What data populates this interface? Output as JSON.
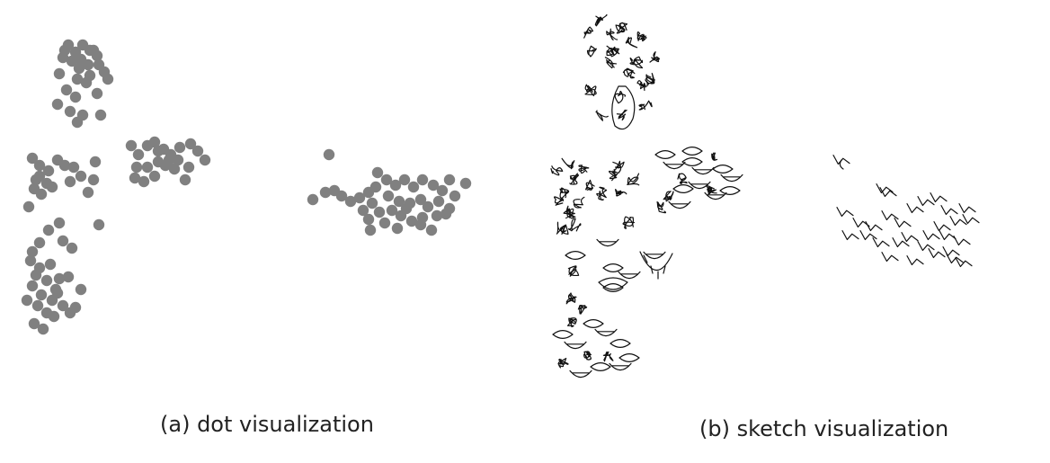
{
  "figure": {
    "caption_a": "(a) dot visualization",
    "caption_b": "(b) sketch visualization"
  },
  "chart_data": [
    {
      "type": "scatter",
      "title": "(a) dot visualization",
      "xlabel": "",
      "ylabel": "",
      "xlim": [
        0,
        560
      ],
      "ylim": [
        0,
        430
      ],
      "grid": false,
      "axes_visible": false,
      "marker_color": "#808080",
      "clusters": [
        {
          "name": "",
          "points": [
            [
              76,
              50
            ],
            [
              84,
              58
            ],
            [
              92,
              50
            ],
            [
              100,
              56
            ],
            [
              108,
              62
            ],
            [
              70,
              64
            ],
            [
              80,
              68
            ],
            [
              90,
              66
            ],
            [
              98,
              72
            ],
            [
              110,
              72
            ],
            [
              120,
              88
            ],
            [
              86,
              88
            ],
            [
              96,
              92
            ],
            [
              74,
              100
            ],
            [
              108,
              104
            ],
            [
              84,
              108
            ],
            [
              64,
              116
            ],
            [
              78,
              124
            ],
            [
              92,
              128
            ],
            [
              112,
              128
            ],
            [
              86,
              136
            ],
            [
              104,
              56
            ],
            [
              72,
              56
            ],
            [
              88,
              76
            ],
            [
              116,
              80
            ],
            [
              100,
              84
            ],
            [
              66,
              82
            ]
          ]
        },
        {
          "name": "",
          "points": [
            [
              146,
              162
            ],
            [
              154,
              172
            ],
            [
              164,
              162
            ],
            [
              172,
              158
            ],
            [
              182,
              166
            ],
            [
              190,
              172
            ],
            [
              198,
              178
            ],
            [
              212,
              160
            ],
            [
              220,
              168
            ],
            [
              228,
              178
            ],
            [
              210,
              186
            ],
            [
              194,
              188
            ],
            [
              184,
              184
            ],
            [
              176,
              180
            ],
            [
              164,
              186
            ],
            [
              152,
              186
            ],
            [
              150,
              198
            ],
            [
              160,
              202
            ],
            [
              172,
              196
            ],
            [
              188,
              178
            ],
            [
              206,
              200
            ],
            [
              176,
              168
            ],
            [
              200,
              164
            ]
          ]
        },
        {
          "name": "",
          "points": [
            [
              36,
              176
            ],
            [
              44,
              184
            ],
            [
              54,
              190
            ],
            [
              64,
              178
            ],
            [
              72,
              184
            ],
            [
              44,
              196
            ],
            [
              52,
              204
            ],
            [
              38,
              210
            ],
            [
              46,
              216
            ],
            [
              58,
              208
            ],
            [
              78,
              202
            ],
            [
              90,
              196
            ],
            [
              106,
              180
            ],
            [
              104,
              200
            ],
            [
              98,
              214
            ],
            [
              32,
              230
            ],
            [
              66,
              248
            ],
            [
              54,
              256
            ],
            [
              70,
              268
            ],
            [
              80,
              276
            ],
            [
              44,
              270
            ],
            [
              36,
              280
            ],
            [
              110,
              250
            ],
            [
              40,
              200
            ],
            [
              82,
              186
            ]
          ]
        },
        {
          "name": "",
          "points": [
            [
              34,
              290
            ],
            [
              44,
              298
            ],
            [
              56,
              294
            ],
            [
              40,
              306
            ],
            [
              52,
              312
            ],
            [
              62,
              322
            ],
            [
              36,
              318
            ],
            [
              46,
              328
            ],
            [
              58,
              334
            ],
            [
              70,
              340
            ],
            [
              42,
              340
            ],
            [
              52,
              348
            ],
            [
              64,
              326
            ],
            [
              76,
              308
            ],
            [
              90,
              322
            ],
            [
              38,
              360
            ],
            [
              48,
              366
            ],
            [
              60,
              352
            ],
            [
              78,
              348
            ],
            [
              30,
              334
            ],
            [
              66,
              310
            ],
            [
              84,
              342
            ]
          ]
        },
        {
          "name": "",
          "points": [
            [
              366,
              172
            ],
            [
              348,
              222
            ],
            [
              362,
              214
            ],
            [
              372,
              212
            ],
            [
              380,
              218
            ],
            [
              390,
              224
            ],
            [
              400,
              220
            ],
            [
              410,
              214
            ],
            [
              418,
              208
            ],
            [
              420,
              192
            ],
            [
              430,
              200
            ],
            [
              440,
              206
            ],
            [
              450,
              200
            ],
            [
              460,
              208
            ],
            [
              470,
              200
            ],
            [
              482,
              206
            ],
            [
              492,
              212
            ],
            [
              506,
              218
            ],
            [
              518,
              204
            ],
            [
              500,
              200
            ],
            [
              432,
              218
            ],
            [
              444,
              224
            ],
            [
              456,
              226
            ],
            [
              468,
              222
            ],
            [
              476,
              230
            ],
            [
              488,
              224
            ],
            [
              500,
              232
            ],
            [
              414,
              226
            ],
            [
              404,
              234
            ],
            [
              422,
              236
            ],
            [
              436,
              234
            ],
            [
              446,
              240
            ],
            [
              458,
              246
            ],
            [
              470,
              242
            ],
            [
              486,
              240
            ],
            [
              496,
              238
            ],
            [
              412,
              256
            ],
            [
              428,
              248
            ],
            [
              442,
              254
            ],
            [
              468,
              250
            ],
            [
              480,
              256
            ],
            [
              452,
              232
            ],
            [
              410,
              244
            ]
          ]
        }
      ]
    },
    {
      "type": "scatter",
      "title": "(b) sketch visualization",
      "xlabel": "",
      "ylabel": "",
      "xlim": [
        0,
        560
      ],
      "ylim": [
        0,
        430
      ],
      "grid": false,
      "axes_visible": false,
      "marker_type": "hand-drawn face-part sketches",
      "marker_color": "#111111",
      "clusters": [
        {
          "name": "",
          "points": [
            [
              656,
              36
            ],
            [
              668,
              22
            ],
            [
              680,
              38
            ],
            [
              692,
              30
            ],
            [
              704,
              48
            ],
            [
              716,
              40
            ],
            [
              726,
              64
            ],
            [
              660,
              58
            ],
            [
              680,
              70
            ],
            [
              700,
              80
            ],
            [
              714,
              94
            ],
            [
              690,
              108
            ],
            [
              658,
              100
            ],
            [
              670,
              128
            ],
            [
              692,
              128
            ],
            [
              718,
              118
            ],
            [
              682,
              58
            ],
            [
              708,
              70
            ],
            [
              724,
              88
            ]
          ]
        },
        {
          "name": "",
          "points": [
            [
              620,
              190
            ],
            [
              632,
              182
            ],
            [
              640,
              200
            ],
            [
              630,
              214
            ],
            [
              644,
              224
            ],
            [
              656,
              206
            ],
            [
              668,
              216
            ],
            [
              690,
              216
            ],
            [
              704,
              200
            ],
            [
              688,
              186
            ],
            [
              634,
              236
            ],
            [
              640,
              250
            ],
            [
              626,
              254
            ],
            [
              700,
              248
            ],
            [
              680,
              194
            ],
            [
              622,
              222
            ],
            [
              650,
              190
            ]
          ]
        },
        {
          "name": "",
          "points": [
            [
              740,
              172
            ],
            [
              750,
              184
            ],
            [
              760,
              198
            ],
            [
              770,
              180
            ],
            [
              782,
              190
            ],
            [
              792,
              176
            ],
            [
              804,
              188
            ],
            [
              814,
              198
            ],
            [
              744,
              218
            ],
            [
              760,
              210
            ],
            [
              778,
              206
            ],
            [
              792,
              212
            ],
            [
              812,
              212
            ],
            [
              756,
              228
            ],
            [
              736,
              230
            ],
            [
              770,
              168
            ],
            [
              796,
              218
            ]
          ]
        },
        {
          "name": "",
          "points": [
            [
              640,
              284
            ],
            [
              676,
              270
            ],
            [
              638,
              302
            ],
            [
              682,
              298
            ],
            [
              700,
              306
            ],
            [
              636,
              332
            ],
            [
              682,
              320
            ],
            [
              728,
              284
            ],
            [
              648,
              344
            ],
            [
              626,
              372
            ],
            [
              640,
              384
            ],
            [
              654,
              396
            ],
            [
              668,
              408
            ],
            [
              646,
              416
            ],
            [
              676,
              396
            ],
            [
              690,
              382
            ],
            [
              690,
              408
            ],
            [
              626,
              404
            ],
            [
              660,
              360
            ],
            [
              674,
              370
            ],
            [
              636,
              360
            ],
            [
              700,
              398
            ]
          ]
        },
        {
          "name": "",
          "points": [
            [
              936,
              178
            ],
            [
              984,
              210
            ],
            [
              988,
              214
            ],
            [
              940,
              236
            ],
            [
              958,
              248
            ],
            [
              972,
              252
            ],
            [
              990,
              240
            ],
            [
              1004,
              248
            ],
            [
              1018,
              232
            ],
            [
              1030,
              224
            ],
            [
              1044,
              220
            ],
            [
              1056,
              234
            ],
            [
              1066,
              246
            ],
            [
              1076,
              232
            ],
            [
              1054,
              262
            ],
            [
              1070,
              268
            ],
            [
              1058,
              280
            ],
            [
              1042,
              282
            ],
            [
              1030,
              274
            ],
            [
              1018,
              290
            ],
            [
              1002,
              270
            ],
            [
              990,
              286
            ],
            [
              1080,
              244
            ],
            [
              1062,
              288
            ],
            [
              1072,
              292
            ],
            [
              946,
              262
            ],
            [
              966,
              262
            ],
            [
              1012,
              264
            ],
            [
              1048,
              252
            ],
            [
              1036,
              262
            ],
            [
              980,
              270
            ]
          ]
        }
      ]
    }
  ]
}
